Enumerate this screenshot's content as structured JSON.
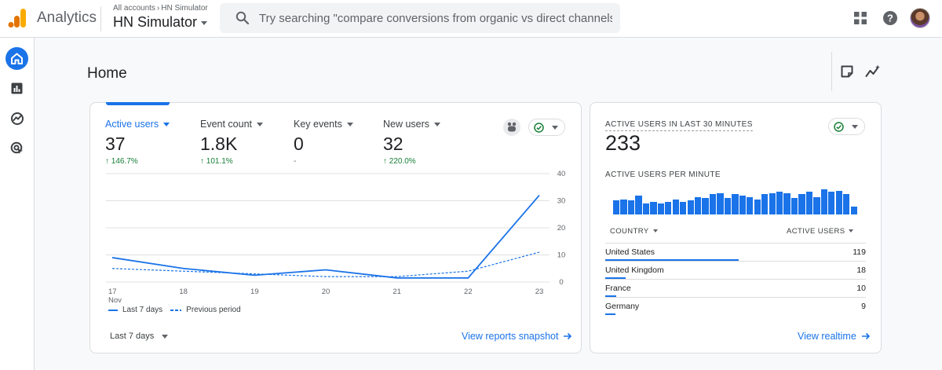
{
  "header": {
    "app_name": "Analytics",
    "breadcrumb_root": "All accounts",
    "breadcrumb_account": "HN Simulator",
    "property_name": "HN Simulator",
    "search_placeholder": "Try searching \"compare conversions from organic vs direct channels\""
  },
  "page": {
    "title": "Home"
  },
  "metrics": [
    {
      "label": "Active users",
      "value": "37",
      "change": "146.7%",
      "trend": "up"
    },
    {
      "label": "Event count",
      "value": "1.8K",
      "change": "101.1%",
      "trend": "up"
    },
    {
      "label": "Key events",
      "value": "0",
      "change": "-",
      "trend": "none"
    },
    {
      "label": "New users",
      "value": "32",
      "change": "220.0%",
      "trend": "up"
    }
  ],
  "chart_data": {
    "type": "line",
    "x": [
      "17 Nov",
      "18",
      "19",
      "20",
      "21",
      "22",
      "23"
    ],
    "x_tick_labels": [
      "17",
      "18",
      "19",
      "20",
      "21",
      "22",
      "23"
    ],
    "x_month_label": "Nov",
    "y_ticks": [
      0,
      10,
      20,
      30,
      40
    ],
    "ylim": [
      0,
      40
    ],
    "series": [
      {
        "name": "Last 7 days",
        "style": "solid",
        "values": [
          9,
          5,
          2.5,
          4.5,
          1.5,
          1.5,
          32
        ]
      },
      {
        "name": "Previous period",
        "style": "dashed",
        "values": [
          5,
          4,
          3,
          2,
          2,
          4,
          11
        ]
      }
    ],
    "grid": true
  },
  "overview": {
    "legend_current": "Last 7 days",
    "legend_previous": "Previous period",
    "date_range": "Last 7 days",
    "view_link": "View reports snapshot"
  },
  "realtime": {
    "title": "ACTIVE USERS IN LAST 30 MINUTES",
    "value": "233",
    "per_minute_label": "ACTIVE USERS PER MINUTE",
    "per_minute": [
      11,
      12,
      11,
      15,
      9,
      10,
      9,
      10,
      12,
      10,
      11,
      14,
      13,
      16,
      17,
      13,
      16,
      15,
      14,
      12,
      16,
      17,
      18,
      17,
      13,
      16,
      18,
      14,
      20,
      18,
      19,
      16,
      6
    ],
    "col_country": "COUNTRY",
    "col_users": "ACTIVE USERS",
    "rows": [
      {
        "country": "United States",
        "users": "119",
        "share": 1.0
      },
      {
        "country": "United Kingdom",
        "users": "18",
        "share": 0.151
      },
      {
        "country": "France",
        "users": "10",
        "share": 0.084
      },
      {
        "country": "Germany",
        "users": "9",
        "share": 0.076
      }
    ],
    "view_link": "View realtime"
  },
  "colors": {
    "accent": "#1a73e8",
    "positive": "#188038",
    "grid": "#e0e0e0"
  }
}
